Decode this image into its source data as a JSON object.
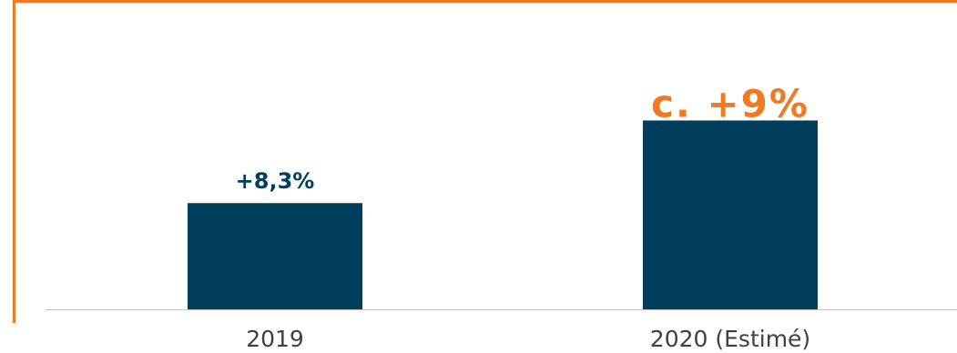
{
  "chart_data": {
    "type": "bar",
    "categories": [
      "2019",
      "2020 (Estimé)"
    ],
    "values": [
      8.3,
      9
    ],
    "data_labels": [
      "+8,3%",
      "c. +9%"
    ],
    "title": "",
    "xlabel": "",
    "ylabel": "",
    "ylim": [
      7.4,
      9.25
    ],
    "grid": false,
    "legend": "none",
    "colors": {
      "bar": "#003E5C",
      "label_default": "#003E5C",
      "label_highlight": "#F07A22",
      "axis": "#BFBFBF",
      "tick_text": "#404040",
      "frame": "#F07A22"
    }
  }
}
